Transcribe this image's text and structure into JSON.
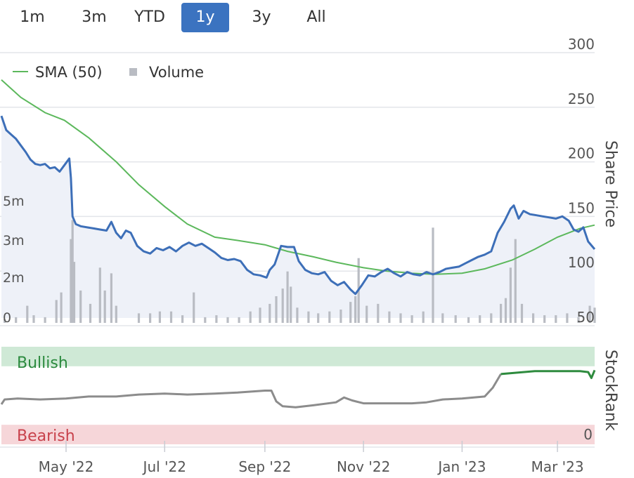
{
  "range_buttons": [
    {
      "label": "1m",
      "active": false
    },
    {
      "label": "3m",
      "active": false
    },
    {
      "label": "YTD",
      "active": false
    },
    {
      "label": "1y",
      "active": true
    },
    {
      "label": "3y",
      "active": false
    },
    {
      "label": "All",
      "active": false
    }
  ],
  "colors": {
    "price_line": "#3d6fb8",
    "sma_line": "#5cb85c",
    "volume_bar": "#b9bcc3",
    "rank_neutral": "#8c8c8c",
    "rank_bullish": "#2e8b3e",
    "bullish_band": "#cfe9d6",
    "bearish_band": "#f6d6d9",
    "active_button": "#3b73c0"
  },
  "chart_data": [
    {
      "type": "line",
      "yaxis_title": "Share Price",
      "ylim": [
        50,
        300
      ],
      "yticks": [
        300,
        250,
        200,
        150,
        100,
        50
      ],
      "x_ticks": [
        "May '22",
        "Jul '22",
        "Sep '22",
        "Nov '22",
        "Jan '23",
        "Mar '23"
      ],
      "x_range": [
        "2022-03-22",
        "2023-03-24"
      ],
      "legend": [
        {
          "name": "SMA (50)",
          "icon": "line"
        },
        {
          "name": "Volume",
          "icon": "square"
        }
      ],
      "series": [
        {
          "name": "Share Price",
          "points": [
            [
              "2022-03-22",
              235
            ],
            [
              "2022-03-25",
              222
            ],
            [
              "2022-03-28",
              218
            ],
            [
              "2022-03-31",
              214
            ],
            [
              "2022-04-03",
              208
            ],
            [
              "2022-04-06",
              202
            ],
            [
              "2022-04-09",
              195
            ],
            [
              "2022-04-12",
              191
            ],
            [
              "2022-04-15",
              190
            ],
            [
              "2022-04-18",
              191
            ],
            [
              "2022-04-21",
              187
            ],
            [
              "2022-04-24",
              188
            ],
            [
              "2022-04-27",
              184
            ],
            [
              "2022-04-30",
              190
            ],
            [
              "2022-05-03",
              196
            ],
            [
              "2022-05-04",
              178
            ],
            [
              "2022-05-05",
              143
            ],
            [
              "2022-05-07",
              136
            ],
            [
              "2022-05-10",
              134
            ],
            [
              "2022-05-14",
              133
            ],
            [
              "2022-05-18",
              132
            ],
            [
              "2022-05-22",
              131
            ],
            [
              "2022-05-26",
              130
            ],
            [
              "2022-05-29",
              138
            ],
            [
              "2022-06-01",
              128
            ],
            [
              "2022-06-04",
              123
            ],
            [
              "2022-06-07",
              130
            ],
            [
              "2022-06-10",
              128
            ],
            [
              "2022-06-14",
              116
            ],
            [
              "2022-06-18",
              111
            ],
            [
              "2022-06-22",
              109
            ],
            [
              "2022-06-26",
              114
            ],
            [
              "2022-06-30",
              112
            ],
            [
              "2022-07-04",
              115
            ],
            [
              "2022-07-08",
              111
            ],
            [
              "2022-07-12",
              116
            ],
            [
              "2022-07-16",
              119
            ],
            [
              "2022-07-20",
              116
            ],
            [
              "2022-07-24",
              118
            ],
            [
              "2022-07-28",
              114
            ],
            [
              "2022-08-01",
              110
            ],
            [
              "2022-08-05",
              105
            ],
            [
              "2022-08-09",
              103
            ],
            [
              "2022-08-13",
              104
            ],
            [
              "2022-08-17",
              102
            ],
            [
              "2022-08-21",
              94
            ],
            [
              "2022-08-25",
              90
            ],
            [
              "2022-08-29",
              89
            ],
            [
              "2022-09-02",
              87
            ],
            [
              "2022-09-04",
              94
            ],
            [
              "2022-09-07",
              99
            ],
            [
              "2022-09-11",
              116
            ],
            [
              "2022-09-15",
              115
            ],
            [
              "2022-09-19",
              115
            ],
            [
              "2022-09-22",
              102
            ],
            [
              "2022-09-26",
              94
            ],
            [
              "2022-09-30",
              91
            ],
            [
              "2022-10-04",
              90
            ],
            [
              "2022-10-08",
              92
            ],
            [
              "2022-10-12",
              84
            ],
            [
              "2022-10-16",
              80
            ],
            [
              "2022-10-20",
              83
            ],
            [
              "2022-10-24",
              76
            ],
            [
              "2022-10-27",
              72
            ],
            [
              "2022-10-31",
              80
            ],
            [
              "2022-11-04",
              89
            ],
            [
              "2022-11-08",
              88
            ],
            [
              "2022-11-12",
              92
            ],
            [
              "2022-11-16",
              95
            ],
            [
              "2022-11-20",
              91
            ],
            [
              "2022-11-24",
              88
            ],
            [
              "2022-11-28",
              92
            ],
            [
              "2022-12-02",
              90
            ],
            [
              "2022-12-06",
              89
            ],
            [
              "2022-12-10",
              92
            ],
            [
              "2022-12-14",
              90
            ],
            [
              "2022-12-18",
              92
            ],
            [
              "2022-12-22",
              95
            ],
            [
              "2022-12-26",
              96
            ],
            [
              "2022-12-30",
              97
            ],
            [
              "2023-01-03",
              100
            ],
            [
              "2023-01-07",
              103
            ],
            [
              "2023-01-11",
              106
            ],
            [
              "2023-01-15",
              108
            ],
            [
              "2023-01-19",
              111
            ],
            [
              "2023-01-23",
              128
            ],
            [
              "2023-01-27",
              138
            ],
            [
              "2023-01-31",
              150
            ],
            [
              "2023-02-02",
              153
            ],
            [
              "2023-02-05",
              141
            ],
            [
              "2023-02-08",
              148
            ],
            [
              "2023-02-12",
              145
            ],
            [
              "2023-02-16",
              144
            ],
            [
              "2023-02-20",
              143
            ],
            [
              "2023-02-24",
              142
            ],
            [
              "2023-02-28",
              141
            ],
            [
              "2023-03-04",
              143
            ],
            [
              "2023-03-08",
              139
            ],
            [
              "2023-03-11",
              131
            ],
            [
              "2023-03-14",
              129
            ],
            [
              "2023-03-17",
              133
            ],
            [
              "2023-03-20",
              120
            ],
            [
              "2023-03-24",
              113
            ]
          ]
        },
        {
          "name": "SMA (50)",
          "points": [
            [
              "2022-03-22",
              268
            ],
            [
              "2022-04-03",
              252
            ],
            [
              "2022-04-18",
              238
            ],
            [
              "2022-04-30",
              231
            ],
            [
              "2022-05-15",
              215
            ],
            [
              "2022-06-01",
              193
            ],
            [
              "2022-06-15",
              172
            ],
            [
              "2022-07-01",
              152
            ],
            [
              "2022-07-15",
              136
            ],
            [
              "2022-08-01",
              124
            ],
            [
              "2022-08-15",
              121
            ],
            [
              "2022-09-01",
              117
            ],
            [
              "2022-09-15",
              111
            ],
            [
              "2022-10-01",
              106
            ],
            [
              "2022-10-15",
              101
            ],
            [
              "2022-11-01",
              96
            ],
            [
              "2022-11-15",
              93
            ],
            [
              "2022-12-01",
              91
            ],
            [
              "2022-12-15",
              90
            ],
            [
              "2023-01-01",
              91
            ],
            [
              "2023-01-15",
              95
            ],
            [
              "2023-02-01",
              103
            ],
            [
              "2023-02-15",
              113
            ],
            [
              "2023-03-01",
              124
            ],
            [
              "2023-03-15",
              132
            ],
            [
              "2023-03-24",
              135
            ]
          ]
        }
      ]
    },
    {
      "type": "bar",
      "series_name": "Volume",
      "ylim": [
        0,
        7
      ],
      "yticks": [
        "0",
        "2m",
        "3m",
        "5m"
      ],
      "bars": [
        [
          "2022-03-24",
          0.2
        ],
        [
          "2022-03-31",
          0.3
        ],
        [
          "2022-04-07",
          0.9
        ],
        [
          "2022-04-11",
          0.4
        ],
        [
          "2022-04-18",
          0.3
        ],
        [
          "2022-04-25",
          1.2
        ],
        [
          "2022-04-28",
          1.6
        ],
        [
          "2022-05-04",
          4.4
        ],
        [
          "2022-05-05",
          5.4
        ],
        [
          "2022-05-06",
          3.2
        ],
        [
          "2022-05-10",
          1.7
        ],
        [
          "2022-05-16",
          1.0
        ],
        [
          "2022-05-22",
          2.9
        ],
        [
          "2022-05-25",
          1.7
        ],
        [
          "2022-05-29",
          2.6
        ],
        [
          "2022-06-01",
          0.9
        ],
        [
          "2022-06-15",
          0.5
        ],
        [
          "2022-06-22",
          0.5
        ],
        [
          "2022-06-28",
          0.6
        ],
        [
          "2022-07-05",
          0.6
        ],
        [
          "2022-07-12",
          0.4
        ],
        [
          "2022-07-19",
          1.6
        ],
        [
          "2022-07-26",
          0.3
        ],
        [
          "2022-08-02",
          0.4
        ],
        [
          "2022-08-09",
          0.3
        ],
        [
          "2022-08-16",
          0.3
        ],
        [
          "2022-08-23",
          0.6
        ],
        [
          "2022-08-29",
          0.8
        ],
        [
          "2022-09-04",
          1.0
        ],
        [
          "2022-09-08",
          1.4
        ],
        [
          "2022-09-12",
          1.8
        ],
        [
          "2022-09-15",
          2.7
        ],
        [
          "2022-09-17",
          1.9
        ],
        [
          "2022-09-21",
          0.8
        ],
        [
          "2022-09-28",
          0.6
        ],
        [
          "2022-10-04",
          0.5
        ],
        [
          "2022-10-11",
          0.6
        ],
        [
          "2022-10-18",
          0.7
        ],
        [
          "2022-10-24",
          1.1
        ],
        [
          "2022-10-27",
          1.4
        ],
        [
          "2022-10-29",
          3.4
        ],
        [
          "2022-11-03",
          0.9
        ],
        [
          "2022-11-10",
          1.0
        ],
        [
          "2022-11-17",
          0.6
        ],
        [
          "2022-11-24",
          0.5
        ],
        [
          "2022-12-01",
          0.4
        ],
        [
          "2022-12-08",
          0.6
        ],
        [
          "2022-12-14",
          5.0
        ],
        [
          "2022-12-20",
          0.5
        ],
        [
          "2022-12-28",
          0.4
        ],
        [
          "2023-01-05",
          0.3
        ],
        [
          "2023-01-12",
          0.4
        ],
        [
          "2023-01-19",
          0.5
        ],
        [
          "2023-01-25",
          1.0
        ],
        [
          "2023-01-28",
          1.3
        ],
        [
          "2023-01-31",
          2.9
        ],
        [
          "2023-02-03",
          4.4
        ],
        [
          "2023-02-07",
          1.0
        ],
        [
          "2023-02-14",
          0.5
        ],
        [
          "2023-02-21",
          0.4
        ],
        [
          "2023-02-28",
          0.4
        ],
        [
          "2023-03-07",
          0.5
        ],
        [
          "2023-03-14",
          0.3
        ],
        [
          "2023-03-21",
          0.9
        ],
        [
          "2023-03-24",
          0.8
        ]
      ]
    },
    {
      "type": "line",
      "yaxis_title": "StockRank",
      "ylim": [
        0,
        100
      ],
      "yticks": [
        "0"
      ],
      "bands": [
        {
          "label": "Bullish",
          "range": [
            80,
            100
          ]
        },
        {
          "label": "Bearish",
          "range": [
            0,
            20
          ]
        }
      ],
      "series": [
        {
          "name": "StockRank",
          "points": [
            [
              "2022-03-22",
              41
            ],
            [
              "2022-03-24",
              46
            ],
            [
              "2022-04-01",
              47
            ],
            [
              "2022-04-15",
              46
            ],
            [
              "2022-05-01",
              47
            ],
            [
              "2022-05-15",
              49
            ],
            [
              "2022-06-01",
              49
            ],
            [
              "2022-06-15",
              51
            ],
            [
              "2022-07-01",
              52
            ],
            [
              "2022-07-15",
              51
            ],
            [
              "2022-08-01",
              52
            ],
            [
              "2022-08-15",
              53
            ],
            [
              "2022-09-01",
              55
            ],
            [
              "2022-09-05",
              55
            ],
            [
              "2022-09-08",
              44
            ],
            [
              "2022-09-12",
              39
            ],
            [
              "2022-09-20",
              38
            ],
            [
              "2022-10-01",
              40
            ],
            [
              "2022-10-15",
              43
            ],
            [
              "2022-10-20",
              48
            ],
            [
              "2022-10-25",
              45
            ],
            [
              "2022-11-01",
              42
            ],
            [
              "2022-11-15",
              42
            ],
            [
              "2022-12-01",
              42
            ],
            [
              "2022-12-10",
              43
            ],
            [
              "2022-12-20",
              46
            ],
            [
              "2023-01-01",
              47
            ],
            [
              "2023-01-15",
              49
            ],
            [
              "2023-01-20",
              58
            ],
            [
              "2023-01-25",
              72
            ],
            [
              "2023-02-01",
              73
            ],
            [
              "2023-02-15",
              75
            ],
            [
              "2023-03-01",
              75
            ],
            [
              "2023-03-15",
              75
            ],
            [
              "2023-03-20",
              74
            ],
            [
              "2023-03-22",
              68
            ],
            [
              "2023-03-24",
              76
            ]
          ]
        }
      ]
    }
  ]
}
